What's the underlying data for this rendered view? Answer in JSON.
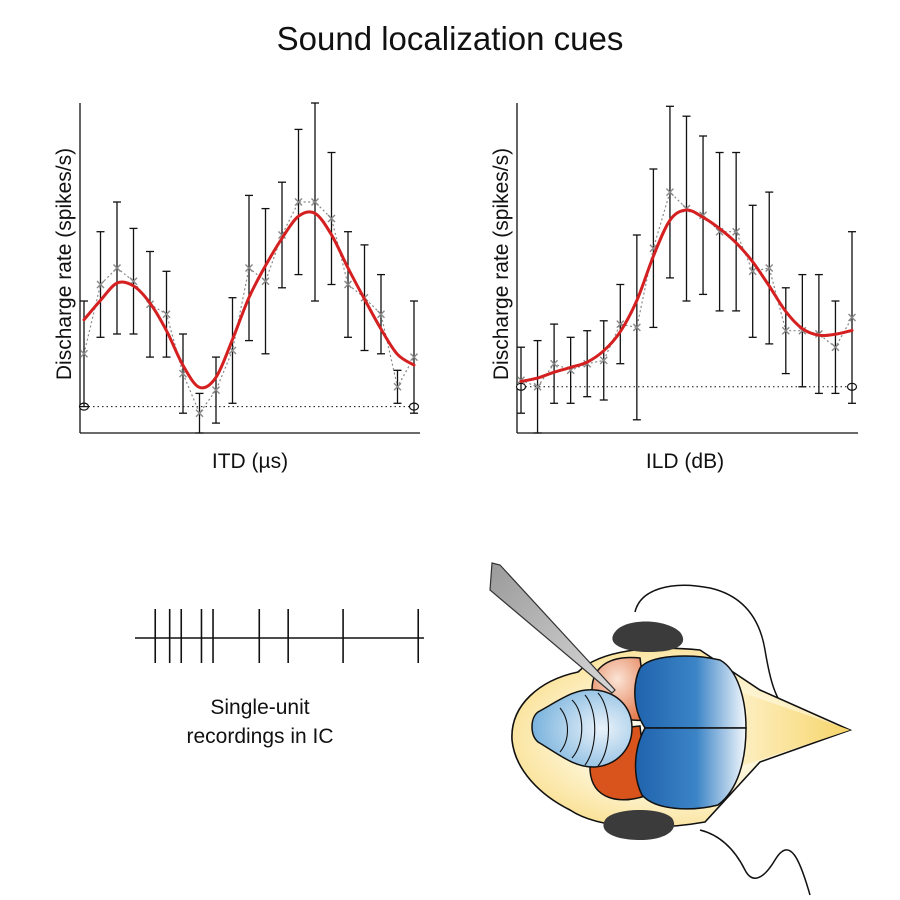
{
  "title": "Sound localization cues",
  "caption": {
    "line1": "Single-unit",
    "line2": "recordings in IC"
  },
  "chart_data": [
    {
      "type": "line",
      "xlabel": "ITD (µs)",
      "ylabel": "Discharge rate (spikes/s)",
      "ylim": [
        0,
        10
      ],
      "grid": false,
      "series": [
        {
          "x": [
            0,
            1,
            2,
            3,
            4,
            5,
            6,
            7,
            8,
            9,
            10,
            11,
            12,
            13,
            14,
            15,
            16,
            17,
            18,
            19,
            20
          ],
          "y": [
            2.4,
            4.5,
            5.0,
            4.6,
            3.9,
            3.6,
            1.8,
            0.6,
            1.3,
            2.5,
            5.0,
            4.6,
            6.0,
            7.0,
            7.0,
            6.5,
            4.5,
            4.1,
            3.6,
            1.4,
            2.3
          ],
          "err": [
            1.6,
            1.6,
            2.0,
            1.6,
            1.6,
            1.3,
            1.2,
            0.6,
            1.0,
            1.6,
            2.2,
            2.2,
            1.6,
            2.2,
            3.0,
            2.0,
            1.6,
            1.6,
            1.2,
            0.5,
            1.7
          ]
        }
      ],
      "baseline": 0.8,
      "colors": {
        "fit": "#d42020",
        "data": "#888888",
        "errorbars": "#111111"
      }
    },
    {
      "type": "line",
      "xlabel": "ILD (dB)",
      "ylabel": "Discharge rate (spikes/s)",
      "ylim": [
        0,
        10
      ],
      "grid": false,
      "series": [
        {
          "x": [
            0,
            1,
            2,
            3,
            4,
            5,
            6,
            7,
            8,
            9,
            10,
            11,
            12,
            13,
            14,
            15,
            16,
            17,
            18,
            19,
            20
          ],
          "y": [
            1.6,
            1.4,
            2.1,
            1.9,
            2.1,
            2.2,
            3.3,
            3.2,
            5.6,
            7.3,
            6.8,
            6.6,
            6.1,
            6.1,
            4.9,
            5.0,
            3.1,
            3.1,
            3.0,
            2.6,
            3.5
          ],
          "err": [
            1.0,
            1.4,
            1.2,
            1.0,
            1.0,
            1.2,
            1.2,
            2.8,
            2.4,
            2.6,
            2.8,
            2.4,
            2.4,
            2.4,
            2.0,
            2.3,
            1.3,
            1.7,
            1.8,
            1.4,
            2.6
          ]
        }
      ],
      "baseline": 1.4,
      "colors": {
        "fit": "#d42020",
        "data": "#888888",
        "errorbars": "#111111"
      }
    }
  ],
  "spike_train": {
    "spike_times": [
      0.07,
      0.12,
      0.16,
      0.23,
      0.27,
      0.43,
      0.53,
      0.72,
      0.98
    ]
  },
  "brain_colors": {
    "head": "#fdf3cf",
    "cerebellum_highlight": "#7ab3dd",
    "cortex": "#2c6fb4",
    "colliculus_superior": "#e88f6a",
    "colliculus_inferior": "#d8541c",
    "eyes": "#3b3b3b",
    "electrode": "#c2c2c2"
  }
}
